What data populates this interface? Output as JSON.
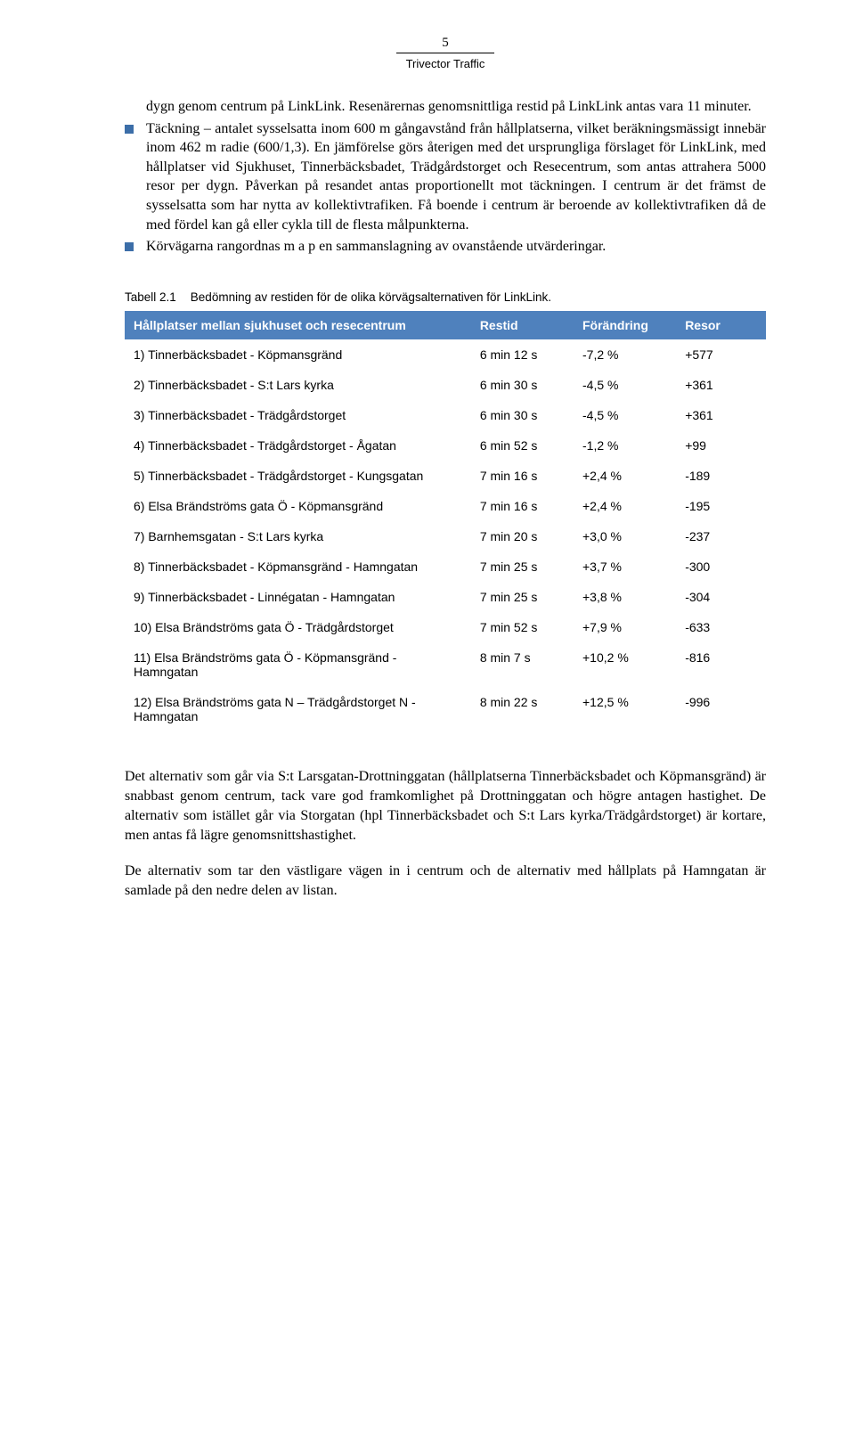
{
  "header": {
    "page_number": "5",
    "subtitle": "Trivector Traffic"
  },
  "body": {
    "intro": "dygn genom centrum på LinkLink. Resenärernas genomsnittliga restid på LinkLink antas vara 11 minuter.",
    "bullets": [
      "Täckning – antalet sysselsatta inom 600 m gångavstånd från hållplatserna, vilket beräkningsmässigt innebär inom 462 m radie (600/1,3). En jämförelse görs återigen med det ursprungliga förslaget för LinkLink, med hållplatser vid Sjukhuset, Tinnerbäcksbadet, Trädgårdstorget och Resecentrum, som antas attrahera 5000 resor per dygn. Påverkan på resandet antas proportionellt mot täckningen. I centrum är det främst de sysselsatta som har nytta av kollektivtrafiken. Få boende i centrum är beroende av kollektivtrafiken då de med fördel kan gå eller cykla till de flesta målpunkterna.",
      "Körvägarna rangordnas m a p en sammanslagning av ovanstående utvärderingar."
    ]
  },
  "table": {
    "caption_label": "Tabell 2.1",
    "caption_text": "Bedömning av restiden för de olika körvägsalternativen för LinkLink.",
    "columns": [
      "Hållplatser mellan sjukhuset och resecentrum",
      "Restid",
      "Förändring",
      "Resor"
    ],
    "rows": [
      [
        "1) Tinnerbäcksbadet - Köpmansgränd",
        "6 min 12 s",
        "-7,2 %",
        "+577"
      ],
      [
        "2) Tinnerbäcksbadet - S:t Lars kyrka",
        "6 min 30 s",
        "-4,5 %",
        "+361"
      ],
      [
        "3) Tinnerbäcksbadet - Trädgårdstorget",
        "6 min 30 s",
        "-4,5 %",
        "+361"
      ],
      [
        "4) Tinnerbäcksbadet - Trädgårdstorget - Ågatan",
        "6 min 52 s",
        "-1,2 %",
        "+99"
      ],
      [
        "5) Tinnerbäcksbadet - Trädgårdstorget - Kungsgatan",
        "7 min 16 s",
        "+2,4 %",
        "-189"
      ],
      [
        "6) Elsa Brändströms gata Ö - Köpmansgränd",
        "7 min 16 s",
        "+2,4 %",
        "-195"
      ],
      [
        "7) Barnhemsgatan - S:t Lars kyrka",
        "7 min 20 s",
        "+3,0 %",
        "-237"
      ],
      [
        "8) Tinnerbäcksbadet - Köpmansgränd - Hamngatan",
        "7 min 25 s",
        "+3,7 %",
        "-300"
      ],
      [
        "9) Tinnerbäcksbadet - Linnégatan - Hamngatan",
        "7 min 25 s",
        "+3,8 %",
        "-304"
      ],
      [
        "10) Elsa Brändströms gata Ö - Trädgårdstorget",
        "7 min 52 s",
        "+7,9 %",
        "-633"
      ],
      [
        "11) Elsa Brändströms gata Ö - Köpmansgränd - Hamngatan",
        "8 min 7 s",
        "+10,2 %",
        "-816"
      ],
      [
        "12) Elsa Brändströms gata N – Trädgårdstorget N - Hamngatan",
        "8 min 22 s",
        "+12,5 %",
        "-996"
      ]
    ],
    "col_widths": [
      "54%",
      "16%",
      "16%",
      "14%"
    ],
    "header_bg": "#4f81bd",
    "header_fg": "#ffffff"
  },
  "closing": {
    "p1": "Det alternativ som går via S:t Larsgatan-Drottninggatan (hållplatserna Tinnerbäcksbadet och Köpmansgränd) är snabbast genom centrum, tack vare god framkomlighet på Drottninggatan och högre antagen hastighet. De alternativ som istället går via Storgatan (hpl Tinnerbäcksbadet och S:t Lars kyrka/Trädgårdstorget) är kortare, men antas få lägre genomsnittshastighet.",
    "p2": "De alternativ som tar den västligare vägen in i centrum och de alternativ med hållplats på Hamngatan är samlade på den nedre delen av listan."
  },
  "style": {
    "bullet_color": "#3c6ea8"
  }
}
